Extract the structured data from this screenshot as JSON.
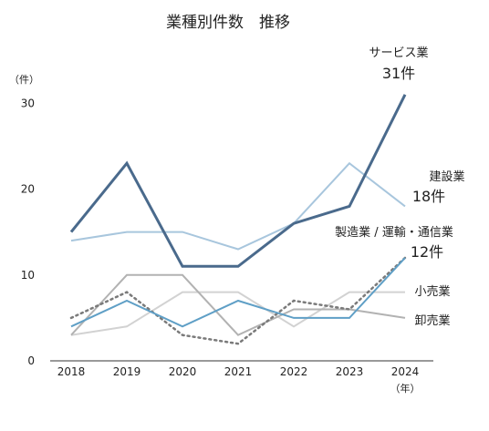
{
  "chart_data": {
    "type": "line",
    "title": "業種別件数　推移",
    "y_unit": "（件）",
    "x_unit": "（年）",
    "categories": [
      "2018",
      "2019",
      "2020",
      "2021",
      "2022",
      "2023",
      "2024"
    ],
    "ylim": [
      0,
      33
    ],
    "yticks": [
      "0",
      "10",
      "20",
      "30"
    ],
    "grid": false,
    "series": [
      {
        "name": "サービス業",
        "end_label": "31件",
        "color": "#4a6a8c",
        "width": 3,
        "dash": "",
        "values": [
          15,
          23,
          11,
          11,
          16,
          18,
          31
        ]
      },
      {
        "name": "建設業",
        "end_label": "18件",
        "color": "#a8c6dd",
        "width": 2,
        "dash": "",
        "values": [
          14,
          15,
          15,
          13,
          16,
          23,
          18
        ]
      },
      {
        "name": "製造業 / 運輸・通信業",
        "end_label": "12件",
        "color": "#5f9fc6",
        "width": 2,
        "dash": "",
        "values": [
          4,
          7,
          4,
          7,
          5,
          5,
          12
        ]
      },
      {
        "name": "",
        "end_label": "",
        "color": "#7a7a7a",
        "width": 2.5,
        "dash": "2 4",
        "values": [
          5,
          8,
          3,
          2,
          7,
          6,
          12
        ]
      },
      {
        "name": "小売業",
        "end_label": "",
        "color": "#d2d2d2",
        "width": 2,
        "dash": "",
        "values": [
          3,
          4,
          8,
          8,
          4,
          8,
          8
        ]
      },
      {
        "name": "卸売業",
        "end_label": "",
        "color": "#b2b2b2",
        "width": 2,
        "dash": "",
        "values": [
          3,
          10,
          10,
          3,
          6,
          6,
          5
        ]
      }
    ]
  }
}
